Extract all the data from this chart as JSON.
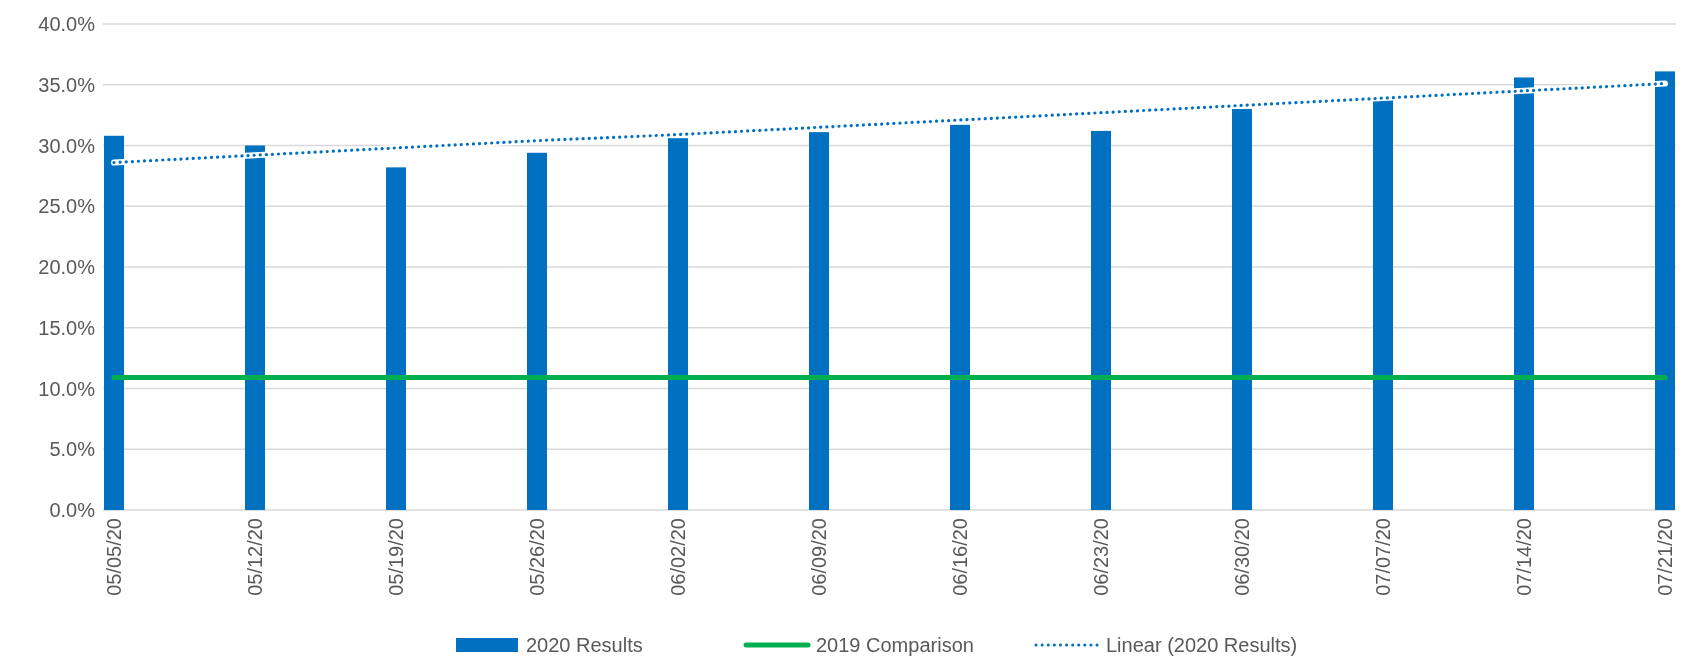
{
  "chart_data": {
    "type": "bar",
    "categories": [
      "05/05/20",
      "05/12/20",
      "05/19/20",
      "05/26/20",
      "06/02/20",
      "06/09/20",
      "06/16/20",
      "06/23/20",
      "06/30/20",
      "07/07/20",
      "07/14/20",
      "07/21/20"
    ],
    "series": [
      {
        "name": "2020 Results",
        "color": "#0070c0",
        "values": [
          30.8,
          30.0,
          28.2,
          29.4,
          30.6,
          31.1,
          31.7,
          31.2,
          33.0,
          34.0,
          35.6,
          36.1
        ]
      },
      {
        "name": "2019 Comparison",
        "type": "line",
        "color": "#00b050",
        "line_style": "solid",
        "values": [
          10.9,
          10.9,
          10.9,
          10.9,
          10.9,
          10.9,
          10.9,
          10.9,
          10.9,
          10.9,
          10.9,
          10.9
        ]
      },
      {
        "name": "Linear (2020 Results)",
        "type": "line",
        "color": "#0070c0",
        "line_style": "dotted",
        "values": [
          28.6,
          29.2,
          29.8,
          30.4,
          30.9,
          31.5,
          32.1,
          32.7,
          33.3,
          33.9,
          34.5,
          35.1
        ]
      }
    ],
    "ylim": [
      0,
      40
    ],
    "yticks": [
      {
        "value": 0,
        "label": "0.0%"
      },
      {
        "value": 5,
        "label": "5.0%"
      },
      {
        "value": 10,
        "label": "10.0%"
      },
      {
        "value": 15,
        "label": "15.0%"
      },
      {
        "value": 20,
        "label": "20.0%"
      },
      {
        "value": 25,
        "label": "25.0%"
      },
      {
        "value": 30,
        "label": "30.0%"
      },
      {
        "value": 35,
        "label": "35.0%"
      },
      {
        "value": 40,
        "label": "40.0%"
      }
    ],
    "grid": "y",
    "legend": "bottom"
  }
}
